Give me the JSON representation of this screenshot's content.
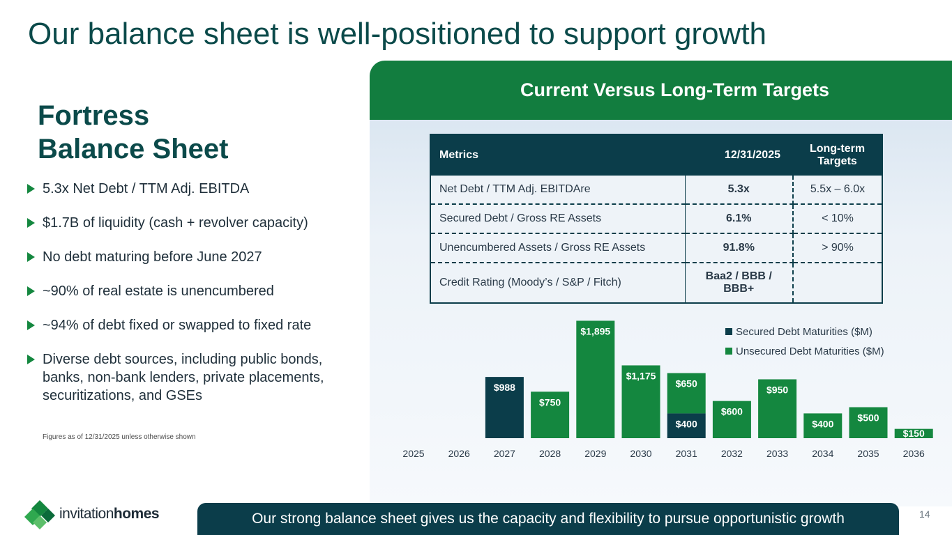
{
  "title": "Our balance sheet is well-positioned to support growth",
  "left": {
    "heading_line1": "Fortress",
    "heading_line2": "Balance Sheet",
    "bullets": [
      "5.3x Net Debt / TTM Adj. EBITDA",
      "$1.7B of liquidity (cash + revolver capacity)",
      "No debt maturing before June 2027",
      "~90% of real estate is unencumbered",
      "~94% of debt fixed or swapped to fixed rate",
      "Diverse debt sources, including public bonds, banks, non-bank lenders, private placements, securitizations, and GSEs"
    ],
    "footnote": "Figures as of 12/31/2025 unless otherwise shown"
  },
  "panel": {
    "header": "Current Versus Long-Term Targets",
    "table": {
      "headers": [
        "Metrics",
        "12/31/2025",
        "Long-term Targets"
      ],
      "rows": [
        [
          "Net Debt / TTM Adj. EBITDAre",
          "5.3x",
          "5.5x – 6.0x"
        ],
        [
          "Secured Debt / Gross RE Assets",
          "6.1%",
          "< 10%"
        ],
        [
          "Unencumbered Assets / Gross RE Assets",
          "91.8%",
          "> 90%"
        ],
        [
          "Credit Rating (Moody’s / S&P / Fitch)",
          "Baa2 / BBB / BBB+",
          ""
        ]
      ]
    }
  },
  "chart_data": {
    "type": "bar",
    "stacked": true,
    "categories": [
      "2025",
      "2026",
      "2027",
      "2028",
      "2029",
      "2030",
      "2031",
      "2032",
      "2033",
      "2034",
      "2035",
      "2036"
    ],
    "series": [
      {
        "name": "Secured Debt Maturities ($M)",
        "color": "#0b3d4a",
        "values": [
          0,
          0,
          988,
          0,
          0,
          0,
          400,
          0,
          0,
          0,
          0,
          0
        ]
      },
      {
        "name": "Unsecured Debt Maturities ($M)",
        "color": "#14873f",
        "values": [
          0,
          0,
          0,
          750,
          1895,
          1175,
          650,
          600,
          950,
          400,
          500,
          150
        ]
      }
    ],
    "data_labels": {
      "secured": [
        "",
        "",
        "$988",
        "",
        "",
        "",
        "$400",
        "",
        "",
        "",
        "",
        ""
      ],
      "unsecured": [
        "",
        "",
        "",
        "$750",
        "$1,895",
        "$1,175",
        "$650",
        "$600",
        "$950",
        "$400",
        "$500",
        "$150"
      ]
    },
    "ylim": [
      0,
      1900
    ],
    "legend": "top-right",
    "grid": false
  },
  "banner": "Our strong balance sheet gives us the capacity and flexibility to pursue opportunistic growth",
  "page_number": "14",
  "logo": {
    "word1": "invitation",
    "word2": "homes"
  },
  "colors": {
    "dark_teal": "#0b3d4a",
    "green": "#14873f",
    "title": "#0b4a4a"
  }
}
